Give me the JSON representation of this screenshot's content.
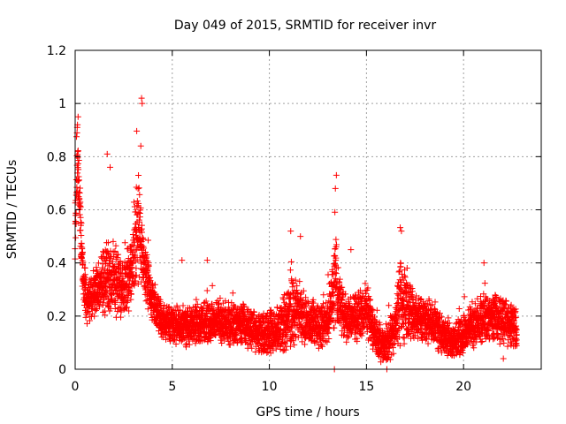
{
  "chart_data": {
    "type": "scatter",
    "title": "Day 049 of 2015, SRMTID for receiver invr",
    "xlabel": "GPS time / hours",
    "ylabel": "SRMTID / TECUs",
    "xlim": [
      0,
      24
    ],
    "ylim": [
      0,
      1.2
    ],
    "x_ticks": [
      0,
      5,
      10,
      15,
      20
    ],
    "x_tick_labels": [
      "0",
      "5",
      "10",
      "15",
      "20"
    ],
    "y_ticks": [
      0,
      0.2,
      0.4,
      0.6,
      0.8,
      1.0,
      1.2
    ],
    "y_tick_labels": [
      "0",
      "0.2",
      "0.4",
      "0.6",
      "0.8",
      "1",
      "1.2"
    ],
    "grid": true,
    "marker": "+",
    "series_color": "#ff0000",
    "series": [
      {
        "name": "SRMTID",
        "x_range_hours": [
          0,
          22.75
        ],
        "sample_step_hours": 0.01,
        "points_per_step": 2,
        "envelope_x": [
          0.0,
          0.1,
          0.15,
          0.25,
          0.4,
          0.6,
          0.9,
          1.2,
          1.6,
          2.0,
          2.5,
          3.0,
          3.2,
          3.4,
          3.6,
          4.0,
          4.5,
          5.5,
          6.5,
          7.5,
          8.5,
          9.5,
          10.5,
          11.0,
          11.5,
          12.0,
          12.5,
          13.0,
          13.4,
          13.6,
          14.0,
          14.5,
          15.0,
          15.5,
          16.0,
          16.5,
          16.8,
          17.5,
          18.5,
          19.0,
          19.5,
          20.0,
          21.0,
          22.0,
          22.75
        ],
        "envelope_y": [
          0.5,
          0.8,
          0.75,
          0.6,
          0.35,
          0.25,
          0.28,
          0.3,
          0.35,
          0.33,
          0.3,
          0.4,
          0.55,
          0.5,
          0.35,
          0.25,
          0.18,
          0.16,
          0.17,
          0.18,
          0.17,
          0.13,
          0.15,
          0.2,
          0.22,
          0.18,
          0.16,
          0.17,
          0.35,
          0.25,
          0.18,
          0.2,
          0.22,
          0.12,
          0.08,
          0.17,
          0.25,
          0.2,
          0.17,
          0.12,
          0.1,
          0.13,
          0.2,
          0.18,
          0.15
        ],
        "noise_amplitude": [
          0.18,
          0.2,
          0.15,
          0.12,
          0.1,
          0.09,
          0.1,
          0.12,
          0.15,
          0.14,
          0.12,
          0.15,
          0.25,
          0.2,
          0.12,
          0.09,
          0.08,
          0.08,
          0.09,
          0.09,
          0.09,
          0.08,
          0.1,
          0.15,
          0.15,
          0.1,
          0.09,
          0.1,
          0.2,
          0.12,
          0.1,
          0.1,
          0.1,
          0.08,
          0.07,
          0.12,
          0.2,
          0.1,
          0.09,
          0.08,
          0.07,
          0.09,
          0.1,
          0.1,
          0.08
        ],
        "peaks": [
          {
            "x": 0.15,
            "y": 0.95
          },
          {
            "x": 0.12,
            "y": 0.92
          },
          {
            "x": 1.65,
            "y": 0.81
          },
          {
            "x": 1.8,
            "y": 0.76
          },
          {
            "x": 3.42,
            "y": 1.02
          },
          {
            "x": 3.45,
            "y": 1.0
          },
          {
            "x": 3.38,
            "y": 0.84
          },
          {
            "x": 13.45,
            "y": 0.73
          },
          {
            "x": 13.4,
            "y": 0.68
          },
          {
            "x": 16.8,
            "y": 0.52
          },
          {
            "x": 11.1,
            "y": 0.52
          },
          {
            "x": 11.6,
            "y": 0.5
          },
          {
            "x": 14.2,
            "y": 0.45
          },
          {
            "x": 5.5,
            "y": 0.41
          },
          {
            "x": 6.8,
            "y": 0.41
          },
          {
            "x": 21.05,
            "y": 0.4
          },
          {
            "x": 13.35,
            "y": 0.0
          },
          {
            "x": 16.05,
            "y": 0.0
          },
          {
            "x": 22.05,
            "y": 0.04
          }
        ]
      }
    ]
  }
}
